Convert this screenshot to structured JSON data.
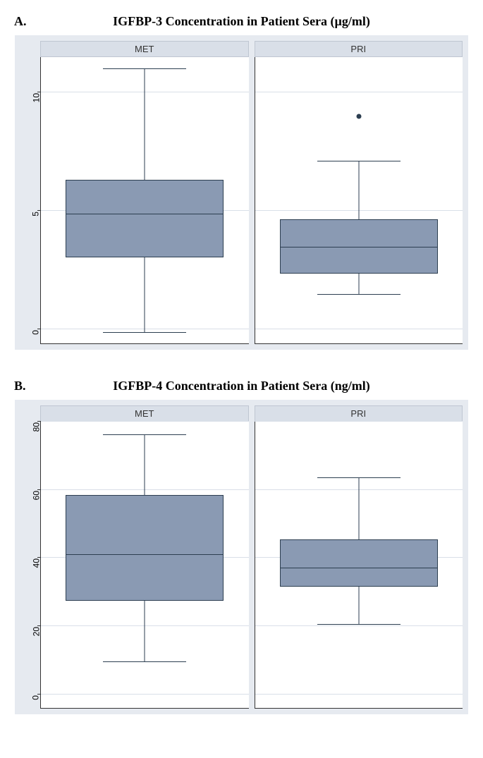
{
  "panels": [
    {
      "letter": "A.",
      "title": "IGFBP-3 Concentration in Patient Sera (µg/ml)",
      "y": {
        "min": -0.6,
        "max": 11.5,
        "ticks": [
          0,
          5,
          10
        ]
      },
      "colors": {
        "plot_bg": "#e6eaf0",
        "subplot_bg": "#ffffff",
        "header_bg": "#d9dfe8",
        "grid": "#d9dfe8",
        "box_fill": "#8a9ab3",
        "box_border": "#2c3e50"
      },
      "groups": [
        {
          "label": "MET",
          "q1": 3.05,
          "median": 4.85,
          "q3": 6.3,
          "whisker_low": -0.15,
          "whisker_high": 11.0,
          "outliers": []
        },
        {
          "label": "PRI",
          "q1": 2.35,
          "median": 3.45,
          "q3": 4.65,
          "whisker_low": 1.45,
          "whisker_high": 7.1,
          "outliers": [
            9.0
          ]
        }
      ]
    },
    {
      "letter": "B.",
      "title": "IGFBP-4 Concentration in Patient Sera (ng/ml)",
      "y": {
        "min": -4,
        "max": 80,
        "ticks": [
          0,
          20,
          40,
          60,
          80
        ]
      },
      "colors": {
        "plot_bg": "#e6eaf0",
        "subplot_bg": "#ffffff",
        "header_bg": "#d9dfe8",
        "grid": "#d9dfe8",
        "box_fill": "#8a9ab3",
        "box_border": "#2c3e50"
      },
      "groups": [
        {
          "label": "MET",
          "q1": 27.5,
          "median": 41.0,
          "q3": 58.5,
          "whisker_low": 9.5,
          "whisker_high": 76.0,
          "outliers": []
        },
        {
          "label": "PRI",
          "q1": 31.5,
          "median": 37.0,
          "q3": 45.5,
          "whisker_low": 20.5,
          "whisker_high": 63.5,
          "outliers": []
        }
      ]
    }
  ],
  "layout": {
    "title_fontsize": 18,
    "tick_fontsize": 12,
    "header_fontsize": 13,
    "font_family_title": "Times New Roman",
    "font_family_axis": "Arial"
  }
}
